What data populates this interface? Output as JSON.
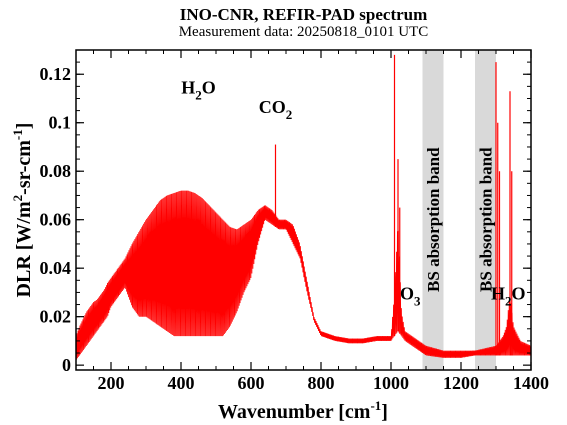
{
  "chart_data": {
    "type": "line",
    "title": "INO-CNR, REFIR-PAD spectrum",
    "subtitle": "Measurement data: 20250818_0101 UTC",
    "xlabel": "Wavenumber [cm-1]",
    "ylabel": "DLR [W/m2-sr-cm-1]",
    "xlim": [
      100,
      1400
    ],
    "ylim": [
      -0.002,
      0.13
    ],
    "xticks": [
      200,
      400,
      600,
      800,
      1000,
      1200,
      1400
    ],
    "xtick_labels": [
      "200",
      "400",
      "600",
      "800",
      "1000",
      "1200",
      "1400"
    ],
    "yticks": [
      0,
      0.02,
      0.04,
      0.06,
      0.08,
      0.1,
      0.12
    ],
    "ytick_labels": [
      "0",
      "0.02",
      "0.04",
      "0.06",
      "0.08",
      "0.1",
      "0.12"
    ],
    "line_color": "#ff0000",
    "band_color": "#d9d9d9",
    "shaded_bands": [
      {
        "xmin": 1090,
        "xmax": 1150,
        "label": "BS absorption band"
      },
      {
        "xmin": 1240,
        "xmax": 1300,
        "label": "BS absorption band"
      }
    ],
    "annotations": [
      {
        "base": "H",
        "sub": "2",
        "tail": "O",
        "x": 450,
        "y": 0.112
      },
      {
        "base": "CO",
        "sub": "2",
        "tail": "",
        "x": 670,
        "y": 0.104
      },
      {
        "base": "O",
        "sub": "3",
        "tail": "",
        "x": 1055,
        "y": 0.027
      },
      {
        "base": "H",
        "sub": "2",
        "tail": "O",
        "x": 1335,
        "y": 0.027
      }
    ],
    "series": [
      {
        "x": [
          100,
          110,
          120,
          130,
          140,
          150,
          160,
          170,
          180,
          190,
          200,
          220,
          240,
          260,
          280,
          300,
          320,
          340,
          360,
          380,
          400,
          420,
          440,
          460,
          480,
          500,
          520,
          540,
          560,
          580,
          600,
          620,
          640,
          660,
          680,
          700,
          720,
          740,
          760,
          780,
          800,
          840,
          880,
          920,
          960,
          1000,
          1010,
          1020,
          1030,
          1040,
          1060,
          1080,
          1100,
          1150,
          1200,
          1240,
          1300,
          1320,
          1330,
          1340,
          1350,
          1370,
          1400
        ],
        "values": [
          0.012,
          0.016,
          0.019,
          0.022,
          0.024,
          0.026,
          0.027,
          0.029,
          0.031,
          0.034,
          0.036,
          0.04,
          0.044,
          0.05,
          0.055,
          0.06,
          0.064,
          0.068,
          0.07,
          0.071,
          0.072,
          0.072,
          0.071,
          0.069,
          0.066,
          0.063,
          0.06,
          0.057,
          0.056,
          0.058,
          0.06,
          0.064,
          0.066,
          0.064,
          0.06,
          0.06,
          0.058,
          0.05,
          0.035,
          0.02,
          0.014,
          0.012,
          0.011,
          0.011,
          0.012,
          0.012,
          0.03,
          0.06,
          0.022,
          0.014,
          0.012,
          0.01,
          0.008,
          0.006,
          0.006,
          0.006,
          0.008,
          0.012,
          0.016,
          0.03,
          0.016,
          0.01,
          0.008
        ],
        "min_envelope": [
          0.002,
          0.004,
          0.006,
          0.008,
          0.01,
          0.012,
          0.014,
          0.016,
          0.018,
          0.02,
          0.024,
          0.028,
          0.032,
          0.024,
          0.02,
          0.02,
          0.018,
          0.016,
          0.014,
          0.012,
          0.012,
          0.012,
          0.012,
          0.012,
          0.012,
          0.012,
          0.012,
          0.016,
          0.022,
          0.03,
          0.036,
          0.05,
          0.06,
          0.058,
          0.056,
          0.056,
          0.05,
          0.044,
          0.03,
          0.018,
          0.012,
          0.01,
          0.009,
          0.009,
          0.01,
          0.01,
          0.012,
          0.014,
          0.012,
          0.01,
          0.008,
          0.006,
          0.004,
          0.003,
          0.003,
          0.004,
          0.004,
          0.004,
          0.004,
          0.004,
          0.004,
          0.004,
          0.004
        ],
        "spikes": [
          {
            "x": 670,
            "y": 0.091
          },
          {
            "x": 1010,
            "y": 0.128
          },
          {
            "x": 1020,
            "y": 0.085
          },
          {
            "x": 1025,
            "y": 0.065
          },
          {
            "x": 1300,
            "y": 0.125
          },
          {
            "x": 1305,
            "y": 0.1
          },
          {
            "x": 1310,
            "y": 0.08
          },
          {
            "x": 1340,
            "y": 0.113
          },
          {
            "x": 1345,
            "y": 0.08
          }
        ]
      }
    ]
  }
}
